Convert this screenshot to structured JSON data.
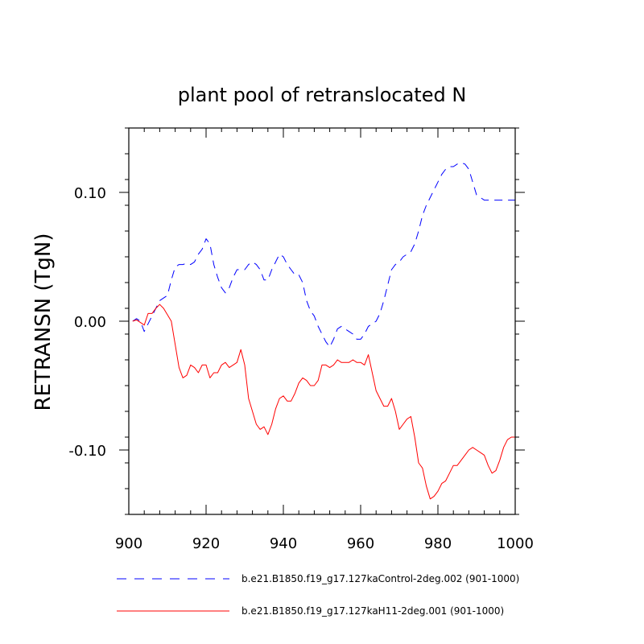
{
  "chart_data": {
    "type": "line",
    "title": "plant pool of retranslocated N",
    "xlabel": "",
    "ylabel": "RETRANSN  (TgN)",
    "xlim": [
      900,
      1000
    ],
    "ylim": [
      -0.15,
      0.15
    ],
    "x_major_ticks": [
      900,
      920,
      940,
      960,
      980,
      1000
    ],
    "x_tick_labels": [
      "900",
      "920",
      "940",
      "960",
      "980",
      "1000"
    ],
    "y_major_ticks": [
      -0.1,
      0.0,
      0.1
    ],
    "y_tick_labels": [
      "-0.10",
      "0.00",
      "0.10"
    ],
    "legend_position": "bottom",
    "grid": false,
    "series": [
      {
        "name": "b.e21.B1850.f19_g17.127kaControl-2deg.002 (901-1000)",
        "color": "#0000ff",
        "dash": "dashed",
        "x": [
          901,
          902,
          903,
          904,
          905,
          906,
          907,
          908,
          909,
          910,
          911,
          912,
          913,
          914,
          915,
          916,
          917,
          918,
          919,
          920,
          921,
          922,
          923,
          924,
          925,
          926,
          927,
          928,
          929,
          930,
          931,
          932,
          933,
          934,
          935,
          936,
          937,
          938,
          939,
          940,
          941,
          942,
          943,
          944,
          945,
          946,
          947,
          948,
          949,
          950,
          951,
          952,
          953,
          954,
          955,
          956,
          957,
          958,
          959,
          960,
          961,
          962,
          963,
          964,
          965,
          966,
          967,
          968,
          969,
          970,
          971,
          972,
          973,
          974,
          975,
          976,
          977,
          978,
          979,
          980,
          981,
          982,
          983,
          984,
          985,
          986,
          987,
          988,
          989,
          990,
          991,
          992,
          993,
          994,
          995,
          996,
          997,
          998,
          999,
          1000
        ],
        "values": [
          0.0,
          0.002,
          0.0,
          -0.008,
          -0.002,
          0.004,
          0.01,
          0.016,
          0.018,
          0.02,
          0.032,
          0.042,
          0.044,
          0.044,
          0.045,
          0.044,
          0.046,
          0.052,
          0.056,
          0.064,
          0.06,
          0.044,
          0.034,
          0.026,
          0.022,
          0.026,
          0.034,
          0.04,
          0.04,
          0.04,
          0.044,
          0.046,
          0.044,
          0.04,
          0.032,
          0.032,
          0.04,
          0.046,
          0.052,
          0.05,
          0.044,
          0.04,
          0.036,
          0.036,
          0.03,
          0.016,
          0.008,
          0.004,
          -0.004,
          -0.01,
          -0.016,
          -0.02,
          -0.014,
          -0.006,
          -0.004,
          -0.006,
          -0.008,
          -0.01,
          -0.014,
          -0.014,
          -0.01,
          -0.004,
          -0.002,
          0.0,
          0.006,
          0.016,
          0.028,
          0.04,
          0.044,
          0.046,
          0.05,
          0.052,
          0.054,
          0.06,
          0.07,
          0.082,
          0.09,
          0.096,
          0.102,
          0.108,
          0.114,
          0.118,
          0.12,
          0.12,
          0.122,
          0.123,
          0.122,
          0.118,
          0.108,
          0.098,
          0.096,
          0.094,
          0.094,
          0.094,
          0.094,
          0.094,
          0.094,
          0.094,
          0.094,
          0.094
        ]
      },
      {
        "name": "b.e21.B1850.f19_g17.127kaH11-2deg.001 (901-1000)",
        "color": "#ff0000",
        "dash": "solid",
        "x": [
          901,
          902,
          903,
          904,
          905,
          906,
          907,
          908,
          909,
          910,
          911,
          912,
          913,
          914,
          915,
          916,
          917,
          918,
          919,
          920,
          921,
          922,
          923,
          924,
          925,
          926,
          927,
          928,
          929,
          930,
          931,
          932,
          933,
          934,
          935,
          936,
          937,
          938,
          939,
          940,
          941,
          942,
          943,
          944,
          945,
          946,
          947,
          948,
          949,
          950,
          951,
          952,
          953,
          954,
          955,
          956,
          957,
          958,
          959,
          960,
          961,
          962,
          963,
          964,
          965,
          966,
          967,
          968,
          969,
          970,
          971,
          972,
          973,
          974,
          975,
          976,
          977,
          978,
          979,
          980,
          981,
          982,
          983,
          984,
          985,
          986,
          987,
          988,
          989,
          990,
          991,
          992,
          993,
          994,
          995,
          996,
          997,
          998,
          999,
          1000
        ],
        "values": [
          0.0,
          0.001,
          -0.001,
          -0.003,
          0.006,
          0.006,
          0.01,
          0.013,
          0.01,
          0.005,
          0.0,
          -0.018,
          -0.036,
          -0.044,
          -0.042,
          -0.034,
          -0.036,
          -0.04,
          -0.034,
          -0.034,
          -0.044,
          -0.04,
          -0.04,
          -0.034,
          -0.032,
          -0.036,
          -0.034,
          -0.032,
          -0.022,
          -0.034,
          -0.06,
          -0.07,
          -0.08,
          -0.084,
          -0.082,
          -0.088,
          -0.08,
          -0.068,
          -0.06,
          -0.058,
          -0.062,
          -0.062,
          -0.056,
          -0.048,
          -0.044,
          -0.046,
          -0.05,
          -0.05,
          -0.046,
          -0.034,
          -0.034,
          -0.036,
          -0.034,
          -0.03,
          -0.032,
          -0.032,
          -0.032,
          -0.03,
          -0.032,
          -0.032,
          -0.034,
          -0.026,
          -0.04,
          -0.054,
          -0.06,
          -0.066,
          -0.066,
          -0.06,
          -0.07,
          -0.084,
          -0.08,
          -0.076,
          -0.074,
          -0.09,
          -0.11,
          -0.114,
          -0.128,
          -0.138,
          -0.136,
          -0.132,
          -0.126,
          -0.124,
          -0.118,
          -0.112,
          -0.112,
          -0.108,
          -0.104,
          -0.1,
          -0.098,
          -0.1,
          -0.102,
          -0.104,
          -0.112,
          -0.118,
          -0.116,
          -0.108,
          -0.098,
          -0.092,
          -0.09,
          -0.09
        ]
      }
    ]
  }
}
